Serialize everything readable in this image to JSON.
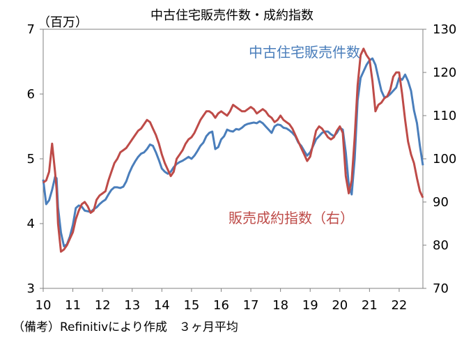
{
  "chart_data": {
    "type": "line",
    "title": "中古住宅販売件数・成約指数",
    "left_axis_unit": "（百万）",
    "note": "（備考）Refinitivにより作成　３ヶ月平均",
    "x_range": [
      2010,
      2022.8
    ],
    "x_ticks": [
      "10",
      "11",
      "12",
      "13",
      "14",
      "15",
      "16",
      "17",
      "18",
      "19",
      "20",
      "21",
      "22"
    ],
    "left_axis": {
      "min": 3,
      "max": 7,
      "ticks": [
        "3",
        "4",
        "5",
        "6",
        "7"
      ]
    },
    "right_axis": {
      "min": 70,
      "max": 130,
      "ticks": [
        "70",
        "80",
        "90",
        "100",
        "110",
        "120",
        "130"
      ]
    },
    "colors": {
      "sales": "#4a7ebb",
      "index": "#be4b48"
    },
    "series": [
      {
        "name": "中古住宅販売件数",
        "axis": "left",
        "points": [
          [
            2010.0,
            4.68
          ],
          [
            2010.1,
            4.3
          ],
          [
            2010.2,
            4.36
          ],
          [
            2010.3,
            4.52
          ],
          [
            2010.4,
            4.72
          ],
          [
            2010.45,
            4.7
          ],
          [
            2010.5,
            4.25
          ],
          [
            2010.6,
            3.86
          ],
          [
            2010.7,
            3.65
          ],
          [
            2010.8,
            3.68
          ],
          [
            2010.9,
            3.8
          ],
          [
            2011.0,
            3.98
          ],
          [
            2011.1,
            4.24
          ],
          [
            2011.2,
            4.28
          ],
          [
            2011.3,
            4.26
          ],
          [
            2011.4,
            4.2
          ],
          [
            2011.5,
            4.19
          ],
          [
            2011.6,
            4.18
          ],
          [
            2011.7,
            4.22
          ],
          [
            2011.8,
            4.25
          ],
          [
            2011.9,
            4.3
          ],
          [
            2012.0,
            4.34
          ],
          [
            2012.1,
            4.37
          ],
          [
            2012.2,
            4.45
          ],
          [
            2012.3,
            4.52
          ],
          [
            2012.4,
            4.56
          ],
          [
            2012.5,
            4.56
          ],
          [
            2012.6,
            4.55
          ],
          [
            2012.7,
            4.57
          ],
          [
            2012.8,
            4.65
          ],
          [
            2012.9,
            4.78
          ],
          [
            2013.0,
            4.88
          ],
          [
            2013.1,
            4.96
          ],
          [
            2013.2,
            5.03
          ],
          [
            2013.3,
            5.08
          ],
          [
            2013.4,
            5.1
          ],
          [
            2013.5,
            5.15
          ],
          [
            2013.6,
            5.22
          ],
          [
            2013.7,
            5.2
          ],
          [
            2013.8,
            5.1
          ],
          [
            2013.9,
            4.98
          ],
          [
            2014.0,
            4.85
          ],
          [
            2014.1,
            4.8
          ],
          [
            2014.2,
            4.77
          ],
          [
            2014.3,
            4.8
          ],
          [
            2014.4,
            4.87
          ],
          [
            2014.5,
            4.92
          ],
          [
            2014.6,
            4.95
          ],
          [
            2014.7,
            4.97
          ],
          [
            2014.8,
            5.0
          ],
          [
            2014.9,
            5.03
          ],
          [
            2015.0,
            5.0
          ],
          [
            2015.1,
            5.05
          ],
          [
            2015.2,
            5.12
          ],
          [
            2015.3,
            5.2
          ],
          [
            2015.4,
            5.25
          ],
          [
            2015.5,
            5.35
          ],
          [
            2015.6,
            5.4
          ],
          [
            2015.7,
            5.42
          ],
          [
            2015.8,
            5.15
          ],
          [
            2015.9,
            5.18
          ],
          [
            2016.0,
            5.3
          ],
          [
            2016.1,
            5.35
          ],
          [
            2016.2,
            5.45
          ],
          [
            2016.3,
            5.43
          ],
          [
            2016.4,
            5.42
          ],
          [
            2016.5,
            5.46
          ],
          [
            2016.6,
            5.45
          ],
          [
            2016.7,
            5.48
          ],
          [
            2016.8,
            5.52
          ],
          [
            2016.9,
            5.54
          ],
          [
            2017.0,
            5.55
          ],
          [
            2017.1,
            5.56
          ],
          [
            2017.2,
            5.55
          ],
          [
            2017.3,
            5.58
          ],
          [
            2017.4,
            5.55
          ],
          [
            2017.5,
            5.5
          ],
          [
            2017.6,
            5.45
          ],
          [
            2017.7,
            5.4
          ],
          [
            2017.8,
            5.5
          ],
          [
            2017.9,
            5.53
          ],
          [
            2018.0,
            5.52
          ],
          [
            2018.1,
            5.48
          ],
          [
            2018.2,
            5.47
          ],
          [
            2018.3,
            5.44
          ],
          [
            2018.4,
            5.4
          ],
          [
            2018.5,
            5.35
          ],
          [
            2018.6,
            5.25
          ],
          [
            2018.7,
            5.2
          ],
          [
            2018.8,
            5.12
          ],
          [
            2018.9,
            5.05
          ],
          [
            2019.0,
            5.1
          ],
          [
            2019.1,
            5.2
          ],
          [
            2019.2,
            5.3
          ],
          [
            2019.3,
            5.35
          ],
          [
            2019.4,
            5.4
          ],
          [
            2019.5,
            5.42
          ],
          [
            2019.6,
            5.42
          ],
          [
            2019.7,
            5.38
          ],
          [
            2019.8,
            5.35
          ],
          [
            2019.9,
            5.4
          ],
          [
            2020.0,
            5.48
          ],
          [
            2020.1,
            5.45
          ],
          [
            2020.2,
            5.1
          ],
          [
            2020.3,
            4.6
          ],
          [
            2020.4,
            4.45
          ],
          [
            2020.5,
            5.0
          ],
          [
            2020.6,
            5.9
          ],
          [
            2020.7,
            6.25
          ],
          [
            2020.8,
            6.35
          ],
          [
            2020.9,
            6.45
          ],
          [
            2021.0,
            6.52
          ],
          [
            2021.1,
            6.55
          ],
          [
            2021.2,
            6.45
          ],
          [
            2021.3,
            6.25
          ],
          [
            2021.4,
            6.05
          ],
          [
            2021.5,
            5.95
          ],
          [
            2021.6,
            5.96
          ],
          [
            2021.7,
            6.0
          ],
          [
            2021.8,
            6.05
          ],
          [
            2021.9,
            6.1
          ],
          [
            2022.0,
            6.25
          ],
          [
            2022.1,
            6.22
          ],
          [
            2022.2,
            6.3
          ],
          [
            2022.3,
            6.2
          ],
          [
            2022.4,
            6.05
          ],
          [
            2022.5,
            5.75
          ],
          [
            2022.6,
            5.55
          ],
          [
            2022.7,
            5.2
          ],
          [
            2022.8,
            4.9
          ]
        ]
      },
      {
        "name": "販売成約指数(右)",
        "axis": "right",
        "points": [
          [
            2010.0,
            94.5
          ],
          [
            2010.1,
            95.0
          ],
          [
            2010.2,
            97.0
          ],
          [
            2010.3,
            103.5
          ],
          [
            2010.4,
            97.0
          ],
          [
            2010.45,
            93.0
          ],
          [
            2010.5,
            85.0
          ],
          [
            2010.6,
            78.5
          ],
          [
            2010.7,
            79.0
          ],
          [
            2010.8,
            80.0
          ],
          [
            2010.9,
            81.5
          ],
          [
            2011.0,
            83.0
          ],
          [
            2011.1,
            86.0
          ],
          [
            2011.2,
            88.0
          ],
          [
            2011.3,
            89.5
          ],
          [
            2011.4,
            90.0
          ],
          [
            2011.5,
            89.0
          ],
          [
            2011.6,
            87.5
          ],
          [
            2011.7,
            88.0
          ],
          [
            2011.8,
            90.5
          ],
          [
            2011.9,
            91.5
          ],
          [
            2012.0,
            92.0
          ],
          [
            2012.1,
            92.5
          ],
          [
            2012.2,
            95.0
          ],
          [
            2012.3,
            97.0
          ],
          [
            2012.4,
            99.0
          ],
          [
            2012.5,
            100.0
          ],
          [
            2012.6,
            101.5
          ],
          [
            2012.7,
            102.0
          ],
          [
            2012.8,
            102.5
          ],
          [
            2012.9,
            103.5
          ],
          [
            2013.0,
            104.5
          ],
          [
            2013.1,
            105.5
          ],
          [
            2013.2,
            106.5
          ],
          [
            2013.3,
            107.0
          ],
          [
            2013.4,
            108.0
          ],
          [
            2013.5,
            109.0
          ],
          [
            2013.6,
            108.5
          ],
          [
            2013.7,
            107.0
          ],
          [
            2013.8,
            105.5
          ],
          [
            2013.9,
            103.5
          ],
          [
            2014.0,
            101.0
          ],
          [
            2014.1,
            99.0
          ],
          [
            2014.2,
            97.5
          ],
          [
            2014.3,
            96.0
          ],
          [
            2014.4,
            97.0
          ],
          [
            2014.5,
            100.0
          ],
          [
            2014.6,
            101.0
          ],
          [
            2014.7,
            102.0
          ],
          [
            2014.8,
            103.5
          ],
          [
            2014.9,
            104.5
          ],
          [
            2015.0,
            105.0
          ],
          [
            2015.1,
            106.0
          ],
          [
            2015.2,
            107.5
          ],
          [
            2015.3,
            109.0
          ],
          [
            2015.4,
            110.0
          ],
          [
            2015.5,
            111.0
          ],
          [
            2015.6,
            111.0
          ],
          [
            2015.7,
            110.5
          ],
          [
            2015.8,
            109.5
          ],
          [
            2015.9,
            110.5
          ],
          [
            2016.0,
            111.0
          ],
          [
            2016.1,
            110.5
          ],
          [
            2016.2,
            110.0
          ],
          [
            2016.3,
            111.0
          ],
          [
            2016.4,
            112.5
          ],
          [
            2016.5,
            112.0
          ],
          [
            2016.6,
            111.5
          ],
          [
            2016.7,
            111.0
          ],
          [
            2016.8,
            111.0
          ],
          [
            2016.9,
            111.5
          ],
          [
            2017.0,
            112.0
          ],
          [
            2017.1,
            111.5
          ],
          [
            2017.2,
            110.5
          ],
          [
            2017.3,
            111.0
          ],
          [
            2017.4,
            111.5
          ],
          [
            2017.5,
            111.0
          ],
          [
            2017.6,
            110.0
          ],
          [
            2017.7,
            109.5
          ],
          [
            2017.8,
            108.5
          ],
          [
            2017.9,
            109.0
          ],
          [
            2018.0,
            110.0
          ],
          [
            2018.1,
            109.0
          ],
          [
            2018.2,
            108.5
          ],
          [
            2018.3,
            108.0
          ],
          [
            2018.4,
            107.0
          ],
          [
            2018.5,
            105.5
          ],
          [
            2018.6,
            104.0
          ],
          [
            2018.7,
            102.5
          ],
          [
            2018.8,
            101.0
          ],
          [
            2018.9,
            99.5
          ],
          [
            2019.0,
            100.5
          ],
          [
            2019.1,
            103.5
          ],
          [
            2019.2,
            106.5
          ],
          [
            2019.3,
            107.5
          ],
          [
            2019.4,
            107.0
          ],
          [
            2019.5,
            106.0
          ],
          [
            2019.6,
            105.0
          ],
          [
            2019.7,
            104.5
          ],
          [
            2019.8,
            105.0
          ],
          [
            2019.9,
            106.5
          ],
          [
            2020.0,
            107.5
          ],
          [
            2020.1,
            106.0
          ],
          [
            2020.2,
            96.0
          ],
          [
            2020.3,
            92.0
          ],
          [
            2020.4,
            95.0
          ],
          [
            2020.5,
            105.0
          ],
          [
            2020.6,
            117.0
          ],
          [
            2020.7,
            124.0
          ],
          [
            2020.8,
            125.5
          ],
          [
            2020.9,
            124.0
          ],
          [
            2021.0,
            123.0
          ],
          [
            2021.1,
            118.0
          ],
          [
            2021.2,
            111.0
          ],
          [
            2021.3,
            112.5
          ],
          [
            2021.4,
            113.0
          ],
          [
            2021.5,
            114.0
          ],
          [
            2021.6,
            114.5
          ],
          [
            2021.7,
            116.0
          ],
          [
            2021.8,
            119.0
          ],
          [
            2021.9,
            120.0
          ],
          [
            2022.0,
            120.0
          ],
          [
            2022.1,
            115.0
          ],
          [
            2022.2,
            109.0
          ],
          [
            2022.3,
            104.0
          ],
          [
            2022.4,
            101.0
          ],
          [
            2022.5,
            99.0
          ],
          [
            2022.6,
            95.5
          ],
          [
            2022.7,
            92.5
          ],
          [
            2022.8,
            91.0
          ]
        ]
      }
    ],
    "series_labels": [
      {
        "text": "中古住宅販売件数",
        "color": "#4a7ebb"
      },
      {
        "text": "販売成約指数（右）",
        "color": "#be4b48"
      }
    ]
  }
}
